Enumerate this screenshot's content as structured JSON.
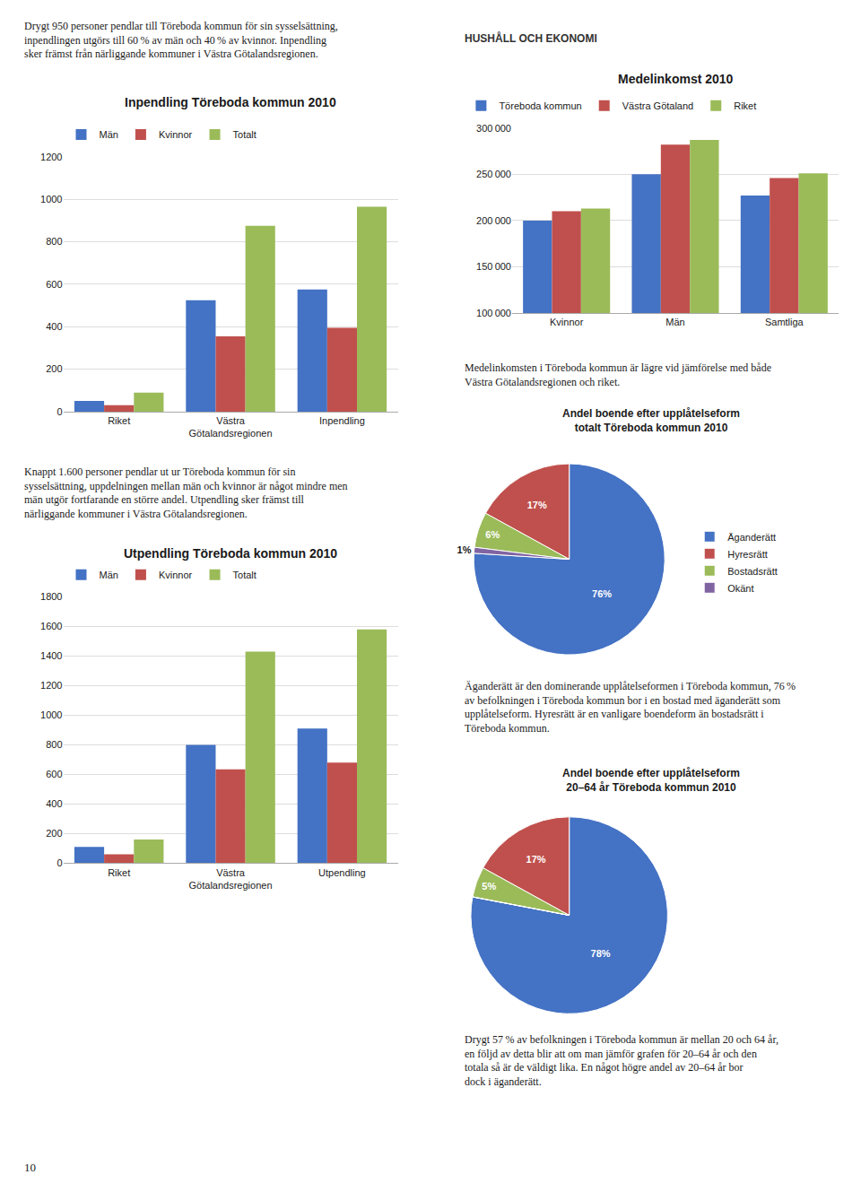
{
  "chart_data": [
    {
      "type": "bar",
      "title": "Inpendling Töreboda kommun 2010",
      "annotations": [
        "Drygt 950 personer pendlar till Töreboda kommun för sin sysselsättning, inpendlingen utgörs till 60 % av män och 40 % av kvinnor. Inpendling sker främst från närliggande kommuner i Västra Götalandsregionen."
      ],
      "categories": [
        "Riket",
        "Västra\nGötalandsregionen",
        "Inpendling"
      ],
      "series": [
        {
          "name": "Män",
          "color": "#4472c4",
          "values": [
            50,
            525,
            575
          ]
        },
        {
          "name": "Kvinnor",
          "color": "#c0504d",
          "values": [
            30,
            355,
            395
          ]
        },
        {
          "name": "Totalt",
          "color": "#9bbb59",
          "values": [
            90,
            875,
            965
          ]
        }
      ],
      "ylim": [
        0,
        1200
      ],
      "yticks": [
        0,
        200,
        400,
        600,
        800,
        1000,
        1200
      ],
      "grid": true,
      "legend": "top"
    },
    {
      "type": "bar",
      "title": "Utpendling Töreboda kommun 2010",
      "annotations": [
        "Knappt 1.600 personer pendlar ut ur Töreboda kommun för sin sysselsättning, uppdelningen mellan män och kvinnor är något mindre men män utgör fortfarande en större andel. Utpendling sker främst till närliggande kommuner i Västra Götalandsregionen.",
        "10"
      ],
      "categories": [
        "Riket",
        "Västra\nGötalandsregionen",
        "Utpendling"
      ],
      "series": [
        {
          "name": "Män",
          "color": "#4472c4",
          "values": [
            110,
            800,
            910
          ]
        },
        {
          "name": "Kvinnor",
          "color": "#c0504d",
          "values": [
            60,
            635,
            680
          ]
        },
        {
          "name": "Totalt",
          "color": "#9bbb59",
          "values": [
            160,
            1430,
            1580
          ]
        }
      ],
      "ylim": [
        0,
        1800
      ],
      "yticks": [
        0,
        200,
        400,
        600,
        800,
        1000,
        1200,
        1400,
        1600,
        1800
      ],
      "grid": true,
      "legend": "top"
    },
    {
      "type": "bar",
      "title": "Medelinkomst 2010",
      "annotations": [
        "HUSHÅLL OCH EKONOMI",
        "Medelinkomsten i Töreboda kommun är lägre vid jämförelse med både Västra Götalandsregionen och riket."
      ],
      "categories": [
        "Kvinnor",
        "Män",
        "Samtliga"
      ],
      "series": [
        {
          "name": "Töreboda kommun",
          "color": "#4472c4",
          "values": [
            200000,
            250000,
            227000
          ]
        },
        {
          "name": "Västra Götaland",
          "color": "#c0504d",
          "values": [
            210000,
            282000,
            246000
          ]
        },
        {
          "name": "Riket",
          "color": "#9bbb59",
          "values": [
            213000,
            287000,
            251000
          ]
        }
      ],
      "ylim": [
        100000,
        300000
      ],
      "yticks": [
        {
          "value": 100000,
          "label": "100 000"
        },
        {
          "value": 150000,
          "label": "150 000"
        },
        {
          "value": 200000,
          "label": "200 000"
        },
        {
          "value": 250000,
          "label": "250 000"
        },
        {
          "value": 300000,
          "label": "300 000"
        }
      ],
      "grid": true,
      "legend": "top"
    },
    {
      "type": "pie",
      "title": "Andel boende efter upplåtelseform\ntotalt Töreboda kommun 2010",
      "annotations": [
        "Äganderätt är den dominerande upplåtelseformen i Töreboda kommun, 76 % av befolkningen i Töreboda kommun bor i en bostad med äganderätt som upplåtelseform. Hyresrätt är en vanligare boendeform än bostadsrätt i Töreboda kommun."
      ],
      "categories": [
        "Äganderätt",
        "Hyresrätt",
        "Bostadsrätt",
        "Okänt"
      ],
      "values": [
        76,
        17,
        6,
        1
      ],
      "value_labels": [
        "76%",
        "17%",
        "6%",
        "1%"
      ],
      "colors": [
        "#4472c4",
        "#c0504d",
        "#9bbb59",
        "#8064a2"
      ],
      "legend": "right"
    },
    {
      "type": "pie",
      "title": "Andel boende efter upplåtelseform\n20–64 år Töreboda kommun 2010",
      "annotations": [
        "Drygt 57 % av befolkningen i Töreboda kommun är mellan 20 och 64 år, en följd av detta blir att om man jämför grafen för 20–64 år och den totala så är de väldigt lika. En något högre andel av 20–64 år bor dock i äganderätt."
      ],
      "categories": [
        "Äganderätt",
        "Hyresrätt",
        "Bostadsrätt",
        "Okänt"
      ],
      "values": [
        78,
        17,
        5,
        0
      ],
      "value_labels": [
        "78%",
        "17%",
        "5%",
        null
      ],
      "colors": [
        "#4472c4",
        "#c0504d",
        "#9bbb59",
        "#8064a2"
      ],
      "legend": "right"
    }
  ]
}
